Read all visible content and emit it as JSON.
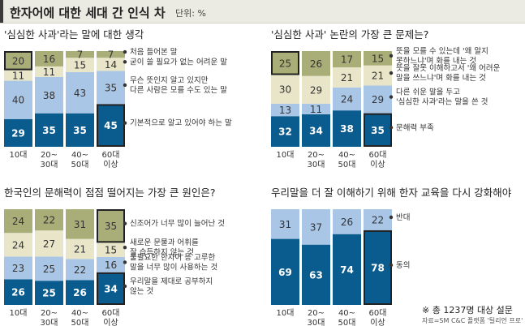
{
  "header": {
    "title": "한자어에 대한 세대 간 인식 차",
    "unit": "단위: %"
  },
  "colors": {
    "c1": "#0a5b8e",
    "c2": "#a9c6e6",
    "c3": "#e8e5c9",
    "c4": "#a9ad78",
    "highlight_border": "#222222",
    "text_dark": "#ffffff",
    "text_light": "#333333"
  },
  "footer": {
    "note": "※ 총 1237명 대상 설문",
    "source": "자료=SM C&C 플랫폼 '틸리언 프로'"
  },
  "chart_data": [
    {
      "type": "bar",
      "stacked": true,
      "title": "'심심한 사과'라는 말에 대한 생각",
      "categories": [
        [
          "10대"
        ],
        [
          "20~",
          "30대"
        ],
        [
          "40~",
          "50대"
        ],
        [
          "60대",
          "이상"
        ]
      ],
      "highlight": [
        0,
        3
      ],
      "series": [
        {
          "name": "기본적으로 알고 있어야 하는 말",
          "values": [
            29,
            35,
            35,
            45
          ]
        },
        {
          "name": "무슨 뜻인지 알고 있지만 다른 사람은 모를 수도 있는 말",
          "values": [
            40,
            38,
            43,
            35
          ]
        },
        {
          "name": "굳이 쓸 필요가 없는 어려운 말",
          "values": [
            11,
            11,
            15,
            14
          ]
        },
        {
          "name": "처음 들어본 말",
          "values": [
            20,
            16,
            7,
            7
          ]
        }
      ],
      "legend_labels": [
        [
          "기본적으로 알고 있어야 하는 말"
        ],
        [
          "무슨 뜻인지 알고 있지만",
          "다른 사람은 모를 수도 있는 말"
        ],
        [
          "굳이 쓸 필요가 없는 어려운 말"
        ],
        [
          "처음 들어본 말"
        ]
      ]
    },
    {
      "type": "bar",
      "stacked": true,
      "title": "'심심한 사과' 논란의 가장 큰 문제는?",
      "categories": [
        [
          "10대"
        ],
        [
          "20~",
          "30대"
        ],
        [
          "40~",
          "50대"
        ],
        [
          "60대",
          "이상"
        ]
      ],
      "highlight": [
        0,
        3
      ],
      "series": [
        {
          "name": "문해력 부족",
          "values": [
            32,
            34,
            38,
            35
          ]
        },
        {
          "name": "다른 쉬운 말을 두고 '심심한 사과'라는 말을 쓴 것",
          "values": [
            13,
            11,
            24,
            29
          ]
        },
        {
          "name": "뜻을 잘못 이해하고서 '왜 어려운 말을 쓰느냐'며 화를 내는 것",
          "values": [
            30,
            29,
            21,
            21
          ]
        },
        {
          "name": "뜻을 모를 수 있는데 '왜 알지 못하느냐'며 화를 내는 것",
          "values": [
            25,
            26,
            17,
            15
          ]
        }
      ],
      "legend_labels": [
        [
          "문해력 부족"
        ],
        [
          "다른 쉬운 말을 두고",
          "'심심한 사과'라는 말을 쓴 것"
        ],
        [
          "뜻을 잘못 이해하고서 '왜 어려운",
          "말을 쓰느냐'며 화를 내는 것"
        ],
        [
          "뜻을 모를 수 있는데 '왜 알지",
          "못하느냐'며 화를 내는 것"
        ]
      ]
    },
    {
      "type": "bar",
      "stacked": true,
      "title": "한국인의 문해력이 점점 떨어지는 가장 큰 원인은?",
      "categories": [
        [
          "10대"
        ],
        [
          "20~",
          "30대"
        ],
        [
          "40~",
          "50대"
        ],
        [
          "60대",
          "이상"
        ]
      ],
      "highlight": [
        3
      ],
      "series": [
        {
          "name": "우리말을 제대로 공부하지 않는 것",
          "values": [
            26,
            25,
            26,
            34
          ]
        },
        {
          "name": "불필요한 한자어 등 고루한 말을 너무 많이 사용하는 것",
          "values": [
            23,
            25,
            22,
            16
          ]
        },
        {
          "name": "새로운 문물과 어휘를 잘 습득하지 않는 것",
          "values": [
            24,
            27,
            21,
            15
          ]
        },
        {
          "name": "신조어가 너무 많이 늘어난 것",
          "values": [
            24,
            22,
            31,
            35
          ]
        }
      ],
      "legend_labels": [
        [
          "우리말을 제대로 공부하지",
          "않는 것"
        ],
        [
          "불필요한 한자어 등 고루한",
          "말을 너무 많이 사용하는 것"
        ],
        [
          "새로운 문물과 어휘를",
          "잘 습득하지 않는 것"
        ],
        [
          "신조어가 너무 많이 늘어난 것"
        ]
      ]
    },
    {
      "type": "bar",
      "stacked": true,
      "title": "우리말을 더 잘 이해하기 위해 한자 교육을 다시 강화해야",
      "categories": [
        [
          "10대"
        ],
        [
          "20~",
          "30대"
        ],
        [
          "40~",
          "50대"
        ],
        [
          "60대",
          "이상"
        ]
      ],
      "highlight": [
        3
      ],
      "series": [
        {
          "name": "동의",
          "values": [
            69,
            63,
            74,
            78
          ]
        },
        {
          "name": "반대",
          "values": [
            31,
            37,
            26,
            22
          ]
        }
      ],
      "legend_labels": [
        [
          "동의"
        ],
        [
          "반대"
        ]
      ]
    }
  ]
}
